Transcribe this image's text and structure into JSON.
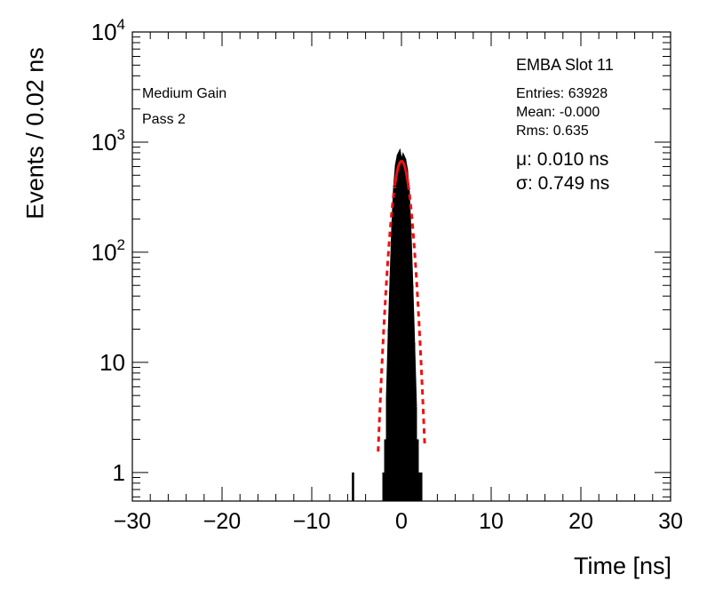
{
  "chart_data": {
    "type": "histogram",
    "title": "EMBA Slot 11",
    "xlabel": "Time [ns]",
    "ylabel": "Events / 0.02 ns",
    "xlim": [
      -30,
      30
    ],
    "ylim": [
      0.55,
      10000
    ],
    "y_scale": "log",
    "x_tick_labels": [
      "−30",
      "−20",
      "−10",
      "0",
      "10",
      "20",
      "30"
    ],
    "x_tick_values": [
      -30,
      -20,
      -10,
      0,
      10,
      20,
      30
    ],
    "y_tick_values": [
      1,
      10,
      100,
      1000,
      10000
    ],
    "y_tick_labels": [
      {
        "base": "1",
        "exp": ""
      },
      {
        "base": "10",
        "exp": ""
      },
      {
        "base": "10",
        "exp": "2"
      },
      {
        "base": "10",
        "exp": "3"
      },
      {
        "base": "10",
        "exp": "4"
      }
    ],
    "annotations": [
      "Medium Gain",
      "Pass 2"
    ],
    "stats": {
      "entries": "Entries: 63928",
      "mean": "Mean: -0.000",
      "rms": "Rms: 0.635"
    },
    "fit": {
      "mu_label": "μ: 0.010 ns",
      "sigma_label": "σ: 0.749 ns",
      "mu": 0.01,
      "sigma": 0.749,
      "amplitude": 670,
      "style": "solid-core dashed-tails",
      "color": "#ee1111"
    },
    "histogram": {
      "color": "#000000",
      "x": [
        -5.4,
        -2.0,
        -1.8,
        -1.6,
        -1.4,
        -1.2,
        -1.0,
        -0.8,
        -0.6,
        -0.4,
        -0.2,
        0.0,
        0.2,
        0.4,
        0.6,
        0.8,
        1.0,
        1.2,
        1.4,
        1.6,
        1.8,
        2.0,
        2.2
      ],
      "y": [
        1,
        1,
        2,
        5,
        20,
        60,
        180,
        400,
        620,
        760,
        820,
        660,
        760,
        700,
        560,
        360,
        150,
        50,
        15,
        4,
        2,
        1,
        1
      ]
    }
  }
}
